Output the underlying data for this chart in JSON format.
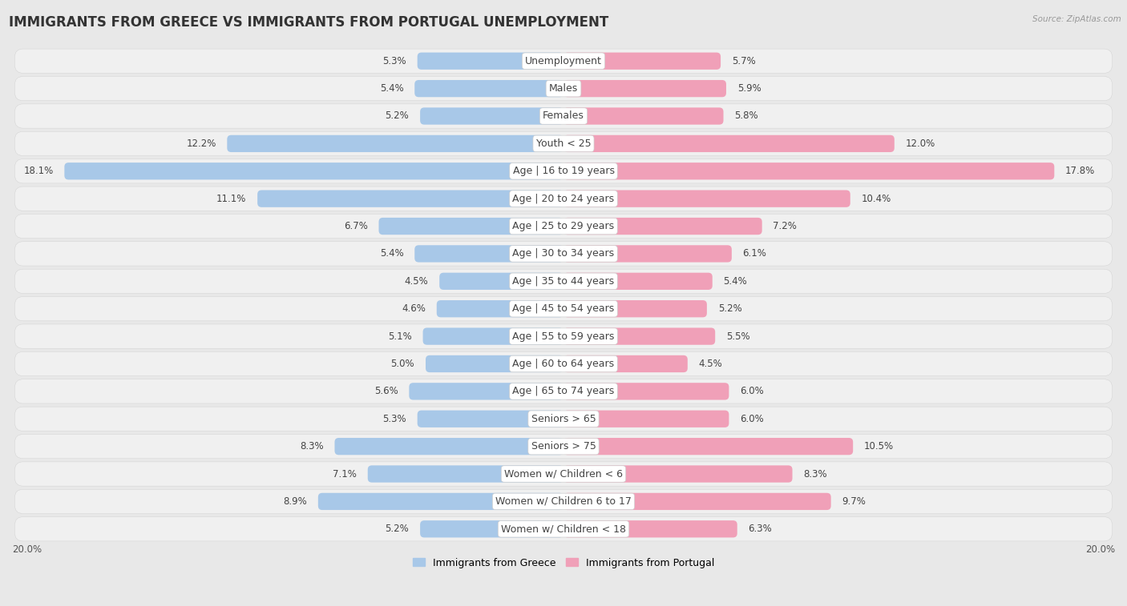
{
  "title": "IMMIGRANTS FROM GREECE VS IMMIGRANTS FROM PORTUGAL UNEMPLOYMENT",
  "source": "Source: ZipAtlas.com",
  "categories": [
    "Unemployment",
    "Males",
    "Females",
    "Youth < 25",
    "Age | 16 to 19 years",
    "Age | 20 to 24 years",
    "Age | 25 to 29 years",
    "Age | 30 to 34 years",
    "Age | 35 to 44 years",
    "Age | 45 to 54 years",
    "Age | 55 to 59 years",
    "Age | 60 to 64 years",
    "Age | 65 to 74 years",
    "Seniors > 65",
    "Seniors > 75",
    "Women w/ Children < 6",
    "Women w/ Children 6 to 17",
    "Women w/ Children < 18"
  ],
  "greece_values": [
    5.3,
    5.4,
    5.2,
    12.2,
    18.1,
    11.1,
    6.7,
    5.4,
    4.5,
    4.6,
    5.1,
    5.0,
    5.6,
    5.3,
    8.3,
    7.1,
    8.9,
    5.2
  ],
  "portugal_values": [
    5.7,
    5.9,
    5.8,
    12.0,
    17.8,
    10.4,
    7.2,
    6.1,
    5.4,
    5.2,
    5.5,
    4.5,
    6.0,
    6.0,
    10.5,
    8.3,
    9.7,
    6.3
  ],
  "greece_color": "#a8c8e8",
  "portugal_color": "#f0a0b8",
  "axis_max": 20.0,
  "background_color": "#e8e8e8",
  "row_bg_color": "#f0f0f0",
  "bar_bg_color": "#dcdcdc",
  "white_color": "#ffffff",
  "title_fontsize": 12,
  "label_fontsize": 9,
  "value_fontsize": 8.5,
  "legend_label_greece": "Immigrants from Greece",
  "legend_label_portugal": "Immigrants from Portugal"
}
